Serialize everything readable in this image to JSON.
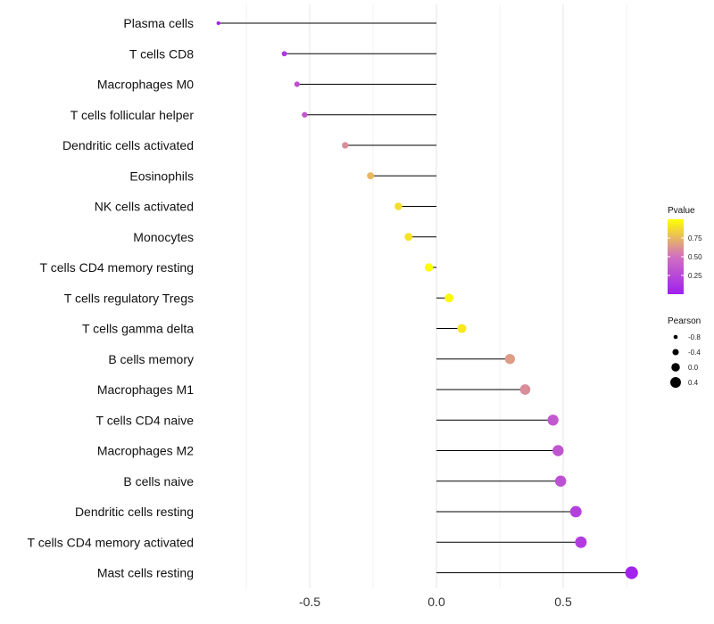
{
  "chart_data": {
    "type": "lollipop",
    "title": "",
    "xlabel": "",
    "ylabel": "",
    "xlim": [
      -0.92,
      0.8
    ],
    "x_ticks": [
      -0.5,
      0.0,
      0.5
    ],
    "x_tick_labels": [
      "-0.5",
      "0.0",
      "0.5"
    ],
    "categories": [
      "Plasma cells",
      "T cells CD8",
      "Macrophages M0",
      "T cells follicular helper",
      "Dendritic cells activated",
      "Eosinophils",
      "NK cells activated",
      "Monocytes",
      "T cells CD4 memory resting",
      "T cells regulatory  Tregs ",
      "T cells gamma delta",
      "B cells memory",
      "Macrophages M1",
      "T cells CD4 naive",
      "Macrophages M2",
      "B cells naive",
      "Dendritic cells resting",
      "T cells CD4 memory activated",
      "Mast cells resting"
    ],
    "pearson": [
      -0.86,
      -0.6,
      -0.55,
      -0.52,
      -0.36,
      -0.26,
      -0.15,
      -0.11,
      -0.03,
      0.05,
      0.1,
      0.29,
      0.35,
      0.46,
      0.48,
      0.49,
      0.55,
      0.57,
      0.77
    ],
    "pvalue": [
      0.02,
      0.15,
      0.3,
      0.35,
      0.6,
      0.75,
      0.88,
      0.9,
      1.0,
      0.98,
      0.92,
      0.65,
      0.6,
      0.35,
      0.33,
      0.3,
      0.2,
      0.18,
      0.02
    ],
    "legend": {
      "color_title": "Pvalue",
      "color_ticks": [
        0.25,
        0.5,
        0.75
      ],
      "color_tick_labels": [
        "0.25",
        "0.50",
        "0.75"
      ],
      "color_range": [
        0.0,
        1.0
      ],
      "color_low": "#a020f0",
      "color_mid": "#d070c0",
      "color_high": "#ffff00",
      "size_title": "Pearson",
      "size_values": [
        -0.8,
        -0.4,
        0.0,
        0.4
      ],
      "size_labels": [
        "-0.8",
        "-0.4",
        "0.0",
        "0.4"
      ]
    }
  }
}
